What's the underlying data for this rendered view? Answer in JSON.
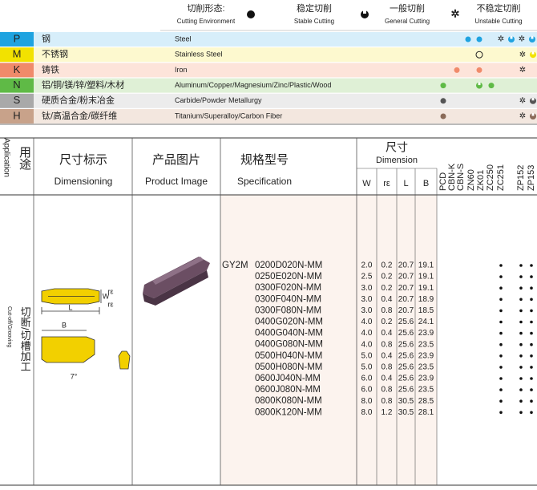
{
  "header": {
    "label_cn": "切削形态:",
    "label_en": "Cutting Environment",
    "modes": [
      {
        "cn": "稳定切削",
        "en": "Stable Cutting"
      },
      {
        "cn": "一般切削",
        "en": "General Cutting"
      },
      {
        "cn": "不稳定切削",
        "en": "Unstable Cutting"
      }
    ]
  },
  "materials": [
    {
      "code": "P",
      "cn": "钢",
      "en": "Steel"
    },
    {
      "code": "M",
      "cn": "不锈钢",
      "en": "Stainless Steel"
    },
    {
      "code": "K",
      "cn": "铸铁",
      "en": "Iron"
    },
    {
      "code": "N",
      "cn": "铝/铜/镁/锌/塑料/木材",
      "en": "Aluminum/Copper/Magnesium/Zinc/Plastic/Wood"
    },
    {
      "code": "S",
      "cn": "硬质合金/粉末冶金",
      "en": "Carbide/Powder Metallurgy"
    },
    {
      "code": "H",
      "cn": "钛/高温合金/碳纤维",
      "en": "Titanium/Superalloy/Carbon Fiber"
    }
  ],
  "table": {
    "headers": {
      "application_en": "Application",
      "application_cn": "用途",
      "dimensioning_cn": "尺寸标示",
      "dimensioning_en": "Dimensioning",
      "image_cn": "产品图片",
      "image_en": "Product Image",
      "spec_cn": "规格型号",
      "spec_en": "Specification",
      "dimension_cn": "尺寸",
      "dimension_en": "Dimension",
      "dims": [
        "W",
        "rε",
        "L",
        "B"
      ]
    },
    "grades": [
      "PCD",
      "CBN-K",
      "CBN-S",
      "ZN60",
      "ZK01",
      "ZC250",
      "ZC251",
      "ZP152",
      "ZP153"
    ],
    "application": {
      "cn": "切断/切槽加工",
      "en": "Cut-off/Grooving"
    },
    "series": "GY2M",
    "rows": [
      {
        "spec": "0200D020N-MM",
        "dims": [
          "2.0",
          "0.2",
          "20.7",
          "19.1"
        ]
      },
      {
        "spec": "0250E020N-MM",
        "dims": [
          "2.5",
          "0.2",
          "20.7",
          "19.1"
        ]
      },
      {
        "spec": "0300F020N-MM",
        "dims": [
          "3.0",
          "0.2",
          "20.7",
          "19.1"
        ]
      },
      {
        "spec": "0300F040N-MM",
        "dims": [
          "3.0",
          "0.4",
          "20.7",
          "18.9"
        ]
      },
      {
        "spec": "0300F080N-MM",
        "dims": [
          "3.0",
          "0.8",
          "20.7",
          "18.5"
        ]
      },
      {
        "spec": "0400G020N-MM",
        "dims": [
          "4.0",
          "0.2",
          "25.6",
          "24.1"
        ]
      },
      {
        "spec": "0400G040N-MM",
        "dims": [
          "4.0",
          "0.4",
          "25.6",
          "23.9"
        ]
      },
      {
        "spec": "0400G080N-MM",
        "dims": [
          "4.0",
          "0.8",
          "25.6",
          "23.5"
        ]
      },
      {
        "spec": "0500H040N-MM",
        "dims": [
          "5.0",
          "0.4",
          "25.6",
          "23.9"
        ]
      },
      {
        "spec": "0500H080N-MM",
        "dims": [
          "5.0",
          "0.8",
          "25.6",
          "23.5"
        ]
      },
      {
        "spec": "0600J040N-MM",
        "dims": [
          "6.0",
          "0.4",
          "25.6",
          "23.9"
        ]
      },
      {
        "spec": "0600J080N-MM",
        "dims": [
          "6.0",
          "0.8",
          "25.6",
          "23.5"
        ]
      },
      {
        "spec": "0800K080N-MM",
        "dims": [
          "8.0",
          "0.8",
          "30.5",
          "28.5"
        ]
      },
      {
        "spec": "0800K120N-MM",
        "dims": [
          "8.0",
          "1.2",
          "30.5",
          "28.1"
        ]
      }
    ]
  },
  "diagram": {
    "labels": [
      "rε",
      "W",
      "rε",
      "L",
      "B",
      "7°"
    ]
  }
}
